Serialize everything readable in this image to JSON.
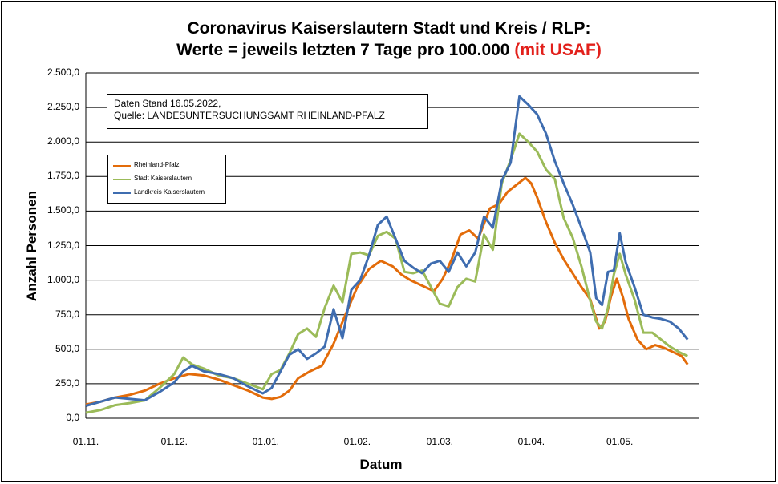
{
  "chart_data": {
    "type": "line",
    "title": "Coronavirus Kaiserslautern Stadt und Kreis / RLP:",
    "subtitle": "Werte = jeweils letzten 7 Tage pro 100.000",
    "subtitle_highlight": "(mit USAF)",
    "xlabel": "Datum",
    "ylabel": "Anzahl Personen",
    "ylim": [
      0,
      2500
    ],
    "yticks": [
      0,
      250,
      500,
      750,
      1000,
      1250,
      1500,
      1750,
      2000,
      2250,
      2500
    ],
    "ytick_labels": [
      "0,0",
      "250,0",
      "500,0",
      "750,0",
      "1.000,0",
      "1.250,0",
      "1.500,0",
      "1.750,0",
      "2.000,0",
      "2.250,0",
      "2.500,0"
    ],
    "xlim": [
      "01.11.",
      "25.05."
    ],
    "xtick_labels": [
      "01.11.",
      "01.12.",
      "01.01.",
      "01.02.",
      "01.03.",
      "01.04.",
      "01.05."
    ],
    "xtick_days": [
      0,
      30,
      61,
      92,
      120,
      151,
      181
    ],
    "grid": true,
    "info_box": [
      "Daten Stand 16.05.2022,",
      "Quelle: LANDESUNTERSUCHUNGSAMT RHEINLAND-PFALZ"
    ],
    "legend_position": "upper-left",
    "series": [
      {
        "name": "Rheinland-Pfalz",
        "color": "#e36c0a",
        "x": [
          0,
          5,
          10,
          15,
          20,
          25,
          30,
          35,
          40,
          45,
          50,
          55,
          60,
          63,
          66,
          69,
          72,
          76,
          80,
          84,
          88,
          92,
          96,
          100,
          104,
          107,
          110,
          114,
          118,
          121,
          124,
          127,
          130,
          133,
          137,
          140,
          143,
          146,
          149,
          151,
          153,
          156,
          159,
          162,
          165,
          168,
          171,
          174,
          176,
          178,
          180,
          182,
          184,
          187,
          190,
          193,
          196,
          199,
          202,
          204
        ],
        "values": [
          100,
          120,
          150,
          170,
          200,
          250,
          290,
          320,
          310,
          280,
          240,
          200,
          150,
          140,
          155,
          200,
          290,
          340,
          380,
          540,
          750,
          950,
          1080,
          1140,
          1100,
          1040,
          1000,
          960,
          920,
          1010,
          1150,
          1330,
          1360,
          1300,
          1520,
          1550,
          1640,
          1690,
          1740,
          1700,
          1600,
          1420,
          1270,
          1150,
          1050,
          950,
          860,
          650,
          700,
          880,
          1010,
          880,
          720,
          570,
          500,
          530,
          510,
          480,
          450,
          390
        ]
      },
      {
        "name": "Stadt Kaiserslautern",
        "color": "#9bbb59",
        "x": [
          0,
          5,
          10,
          15,
          20,
          25,
          30,
          33,
          36,
          40,
          45,
          50,
          55,
          60,
          63,
          66,
          69,
          72,
          75,
          78,
          81,
          84,
          87,
          90,
          93,
          96,
          99,
          102,
          105,
          108,
          111,
          114,
          117,
          120,
          123,
          126,
          129,
          132,
          135,
          138,
          141,
          144,
          147,
          150,
          153,
          156,
          159,
          162,
          165,
          168,
          171,
          173,
          175,
          177,
          179,
          181,
          183,
          186,
          189,
          192,
          195,
          198,
          201,
          204
        ],
        "values": [
          40,
          60,
          95,
          110,
          130,
          220,
          320,
          440,
          390,
          360,
          310,
          290,
          250,
          210,
          320,
          350,
          470,
          610,
          650,
          590,
          800,
          960,
          840,
          1190,
          1200,
          1180,
          1320,
          1350,
          1300,
          1060,
          1050,
          1070,
          950,
          830,
          810,
          950,
          1010,
          990,
          1330,
          1220,
          1700,
          1870,
          2060,
          2000,
          1930,
          1800,
          1730,
          1450,
          1310,
          1100,
          850,
          700,
          650,
          800,
          1040,
          1190,
          1040,
          860,
          620,
          620,
          570,
          520,
          480,
          450
        ]
      },
      {
        "name": "Landkreis Kaiserslautern",
        "color": "#3f6db0",
        "x": [
          0,
          5,
          10,
          15,
          20,
          25,
          30,
          33,
          36,
          40,
          45,
          50,
          55,
          60,
          63,
          66,
          69,
          72,
          75,
          78,
          81,
          84,
          87,
          90,
          93,
          96,
          99,
          102,
          105,
          108,
          111,
          114,
          117,
          120,
          123,
          126,
          129,
          132,
          135,
          138,
          141,
          144,
          147,
          150,
          153,
          156,
          159,
          162,
          165,
          168,
          171,
          173,
          175,
          177,
          179,
          181,
          183,
          186,
          189,
          192,
          195,
          198,
          201,
          204
        ],
        "values": [
          90,
          120,
          150,
          140,
          130,
          190,
          260,
          340,
          380,
          340,
          320,
          290,
          230,
          180,
          220,
          340,
          460,
          500,
          430,
          470,
          520,
          790,
          580,
          930,
          1000,
          1180,
          1400,
          1460,
          1300,
          1140,
          1090,
          1050,
          1120,
          1140,
          1060,
          1200,
          1100,
          1200,
          1460,
          1380,
          1720,
          1850,
          2330,
          2270,
          2200,
          2060,
          1860,
          1700,
          1550,
          1380,
          1200,
          870,
          820,
          1060,
          1070,
          1340,
          1130,
          950,
          750,
          730,
          720,
          700,
          650,
          570
        ]
      }
    ]
  }
}
